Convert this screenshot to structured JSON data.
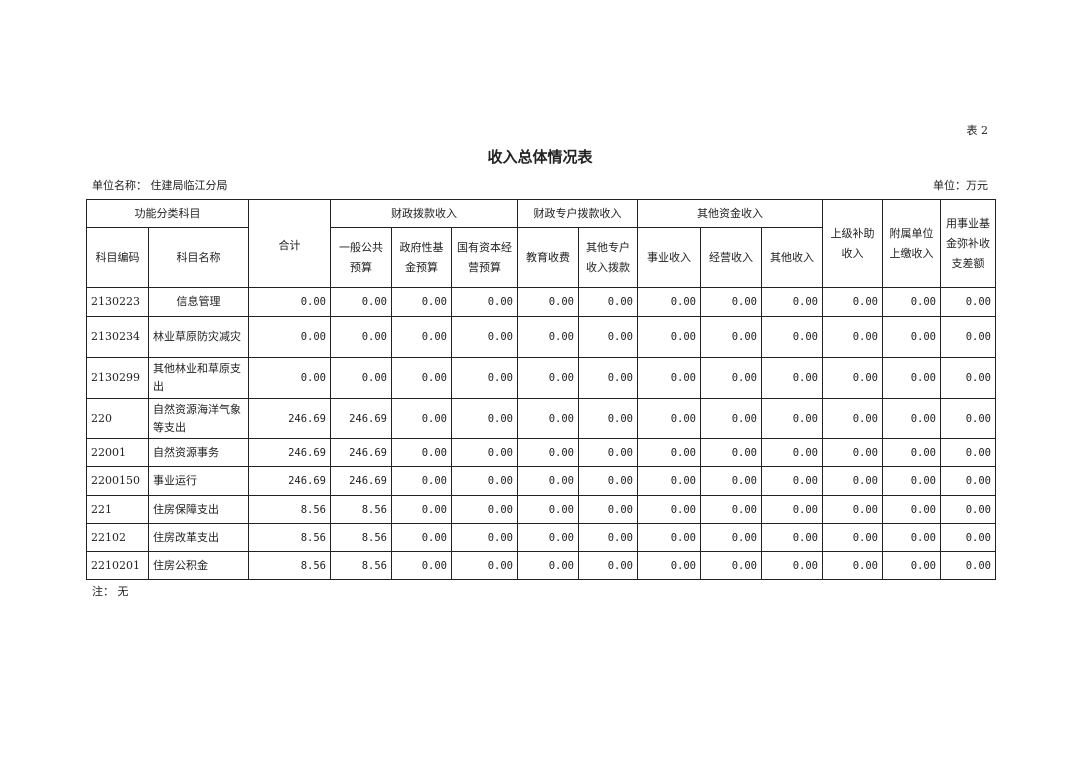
{
  "table_no": "表 2",
  "title": "收入总体情况表",
  "unit_name_label": "单位名称：",
  "unit_name": "住建局临江分局",
  "unit": "单位：万元",
  "headers": {
    "func": "功能分类科目",
    "code": "科目编码",
    "name": "科目名称",
    "total": "合计",
    "fiscal": "财政拨款收入",
    "fiscal_cols": [
      "一般公共预算",
      "政府性基金预算",
      "国有资本经营预算"
    ],
    "special": "财政专户拨款收入",
    "special_cols": [
      "教育收费",
      "其他专户收入拨款"
    ],
    "other": "其他资金收入",
    "other_cols": [
      "事业收入",
      "经营收入",
      "其他收入"
    ],
    "upper": "上级补助收入",
    "affiliated": "附属单位上缴收入",
    "fund": "用事业基金弥补收支差额"
  },
  "rows": [
    {
      "code": "2130223",
      "name": "信息管理",
      "values": [
        "0.00",
        "0.00",
        "0.00",
        "0.00",
        "0.00",
        "0.00",
        "0.00",
        "0.00",
        "0.00",
        "0.00",
        "0.00",
        "0.00"
      ]
    },
    {
      "code": "2130234",
      "name": "林业草原防灾减灾",
      "values": [
        "0.00",
        "0.00",
        "0.00",
        "0.00",
        "0.00",
        "0.00",
        "0.00",
        "0.00",
        "0.00",
        "0.00",
        "0.00",
        "0.00"
      ]
    },
    {
      "code": "2130299",
      "name": "其他林业和草原支出",
      "values": [
        "0.00",
        "0.00",
        "0.00",
        "0.00",
        "0.00",
        "0.00",
        "0.00",
        "0.00",
        "0.00",
        "0.00",
        "0.00",
        "0.00"
      ]
    },
    {
      "code": "220",
      "name": "自然资源海洋气象等支出",
      "values": [
        "246.69",
        "246.69",
        "0.00",
        "0.00",
        "0.00",
        "0.00",
        "0.00",
        "0.00",
        "0.00",
        "0.00",
        "0.00",
        "0.00"
      ]
    },
    {
      "code": "22001",
      "name": "自然资源事务",
      "values": [
        "246.69",
        "246.69",
        "0.00",
        "0.00",
        "0.00",
        "0.00",
        "0.00",
        "0.00",
        "0.00",
        "0.00",
        "0.00",
        "0.00"
      ]
    },
    {
      "code": "2200150",
      "name": "事业运行",
      "values": [
        "246.69",
        "246.69",
        "0.00",
        "0.00",
        "0.00",
        "0.00",
        "0.00",
        "0.00",
        "0.00",
        "0.00",
        "0.00",
        "0.00"
      ]
    },
    {
      "code": "221",
      "name": "住房保障支出",
      "values": [
        "8.56",
        "8.56",
        "0.00",
        "0.00",
        "0.00",
        "0.00",
        "0.00",
        "0.00",
        "0.00",
        "0.00",
        "0.00",
        "0.00"
      ]
    },
    {
      "code": "22102",
      "name": "住房改革支出",
      "values": [
        "8.56",
        "8.56",
        "0.00",
        "0.00",
        "0.00",
        "0.00",
        "0.00",
        "0.00",
        "0.00",
        "0.00",
        "0.00",
        "0.00"
      ]
    },
    {
      "code": "2210201",
      "name": "住房公积金",
      "values": [
        "8.56",
        "8.56",
        "0.00",
        "0.00",
        "0.00",
        "0.00",
        "0.00",
        "0.00",
        "0.00",
        "0.00",
        "0.00",
        "0.00"
      ]
    }
  ],
  "note": "注： 无"
}
